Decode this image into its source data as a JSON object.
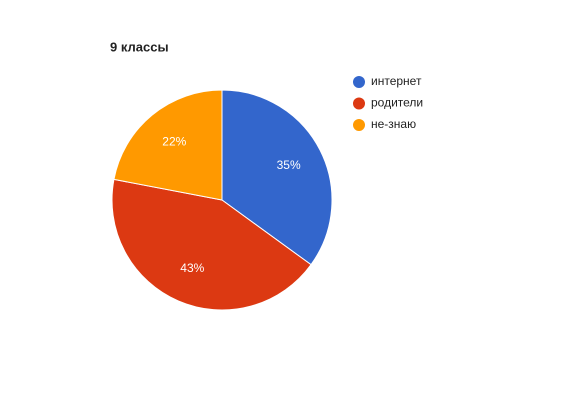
{
  "chart_data": {
    "type": "pie",
    "title": "9 классы",
    "categories": [
      "интернет",
      "родители",
      "не-знаю"
    ],
    "values": [
      35,
      43,
      22
    ],
    "value_labels": [
      "35%",
      "43%",
      "22%"
    ],
    "colors": [
      "#3366cc",
      "#dc3912",
      "#ff9900"
    ],
    "legend": "right"
  }
}
